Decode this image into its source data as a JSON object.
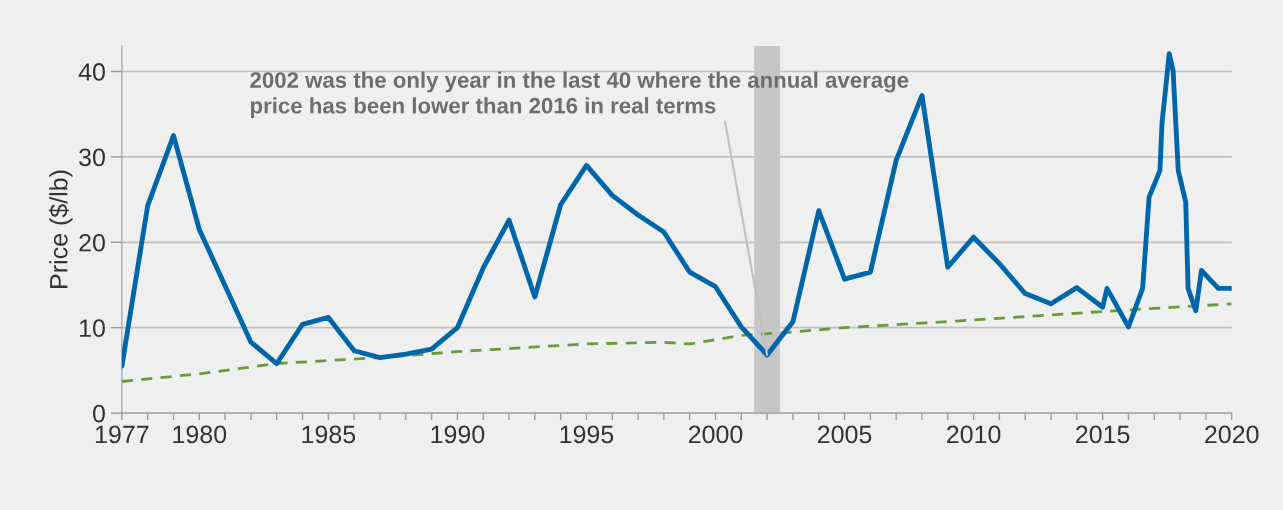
{
  "chart_data": {
    "type": "line",
    "ylabel": "Price ($/lb)",
    "xlim": [
      1977,
      2020
    ],
    "ylim": [
      0,
      43
    ],
    "yticks": [
      0,
      10,
      20,
      30,
      40
    ],
    "xticks": [
      1977,
      {
        "value": 1978,
        "label": null
      },
      {
        "value": 1979,
        "label": null
      },
      1980,
      {
        "value": 1981,
        "label": null
      },
      {
        "value": 1982,
        "label": null
      },
      {
        "value": 1983,
        "label": null
      },
      {
        "value": 1984,
        "label": null
      },
      1985,
      {
        "value": 1986,
        "label": null
      },
      {
        "value": 1987,
        "label": null
      },
      {
        "value": 1988,
        "label": null
      },
      {
        "value": 1989,
        "label": null
      },
      1990,
      {
        "value": 1991,
        "label": null
      },
      {
        "value": 1992,
        "label": null
      },
      {
        "value": 1993,
        "label": null
      },
      {
        "value": 1994,
        "label": null
      },
      1995,
      {
        "value": 1996,
        "label": null
      },
      {
        "value": 1997,
        "label": null
      },
      {
        "value": 1998,
        "label": null
      },
      {
        "value": 1999,
        "label": null
      },
      2000,
      {
        "value": 2001,
        "label": null
      },
      {
        "value": 2002,
        "label": null
      },
      {
        "value": 2003,
        "label": null
      },
      {
        "value": 2004,
        "label": null
      },
      2005,
      {
        "value": 2006,
        "label": null
      },
      {
        "value": 2007,
        "label": null
      },
      {
        "value": 2008,
        "label": null
      },
      {
        "value": 2009,
        "label": null
      },
      2010,
      {
        "value": 2011,
        "label": null
      },
      {
        "value": 2012,
        "label": null
      },
      {
        "value": 2013,
        "label": null
      },
      {
        "value": 2014,
        "label": null
      },
      2015,
      {
        "value": 2016,
        "label": null
      },
      {
        "value": 2017,
        "label": null
      },
      {
        "value": 2018,
        "label": null
      },
      {
        "value": 2019,
        "label": null
      },
      2020
    ],
    "grid": "y",
    "legend": false,
    "series": [
      {
        "color": "#0066aa",
        "line_style": "solid",
        "x": [
          1977,
          1978,
          1979,
          1980,
          1982,
          1983,
          1984,
          1985,
          1986,
          1987,
          1988,
          1989,
          1990,
          1991,
          1992,
          1993,
          1994,
          1995,
          1996,
          1997,
          1998,
          1999,
          2000,
          2001,
          2002,
          2003,
          2004,
          2005,
          2006,
          2007,
          2008,
          2009,
          2010,
          2011,
          2012,
          2013,
          2014,
          2015,
          2015.17,
          2016,
          2016.55,
          2016.8,
          2017.22,
          2017.3,
          2017.58,
          2017.73,
          2017.93,
          2018.22,
          2018.31,
          2018.61,
          2018.83,
          2019.48,
          2020
        ],
        "values": [
          5.5,
          24.3,
          32.5,
          21.5,
          8.3,
          5.8,
          10.4,
          11.2,
          7.3,
          6.5,
          6.9,
          7.5,
          10.0,
          17.0,
          22.6,
          13.6,
          24.4,
          29.0,
          25.5,
          23.2,
          21.2,
          16.5,
          14.8,
          10.1,
          6.8,
          10.7,
          23.7,
          15.7,
          16.5,
          29.6,
          37.2,
          17.1,
          20.6,
          17.5,
          14.0,
          12.8,
          14.7,
          12.4,
          14.6,
          10.1,
          14.6,
          25.3,
          28.4,
          33.9,
          42.1,
          40.1,
          28.4,
          24.7,
          14.6,
          12.0,
          16.7,
          14.6,
          14.6
        ]
      },
      {
        "color": "#6a9a3a",
        "line_style": "dashed",
        "x": [
          1977,
          1980,
          1983,
          1987,
          1990,
          1995,
          1998,
          1999,
          2001,
          2003,
          2005,
          2010,
          2015,
          2020
        ],
        "values": [
          3.7,
          4.6,
          5.8,
          6.5,
          7.2,
          8.1,
          8.3,
          8.1,
          9.1,
          9.5,
          10.0,
          10.9,
          11.9,
          12.8
        ]
      }
    ],
    "bands": [
      {
        "axis": "x",
        "from": 2001.5,
        "to": 2002.5,
        "color": "#c6c6c6"
      }
    ],
    "annotations": [
      {
        "text": "2002 was the only year in the last 40 where the annual average\nprice has been lower than 2016 in real terms",
        "x": 2002,
        "y": 6.8
      }
    ]
  }
}
